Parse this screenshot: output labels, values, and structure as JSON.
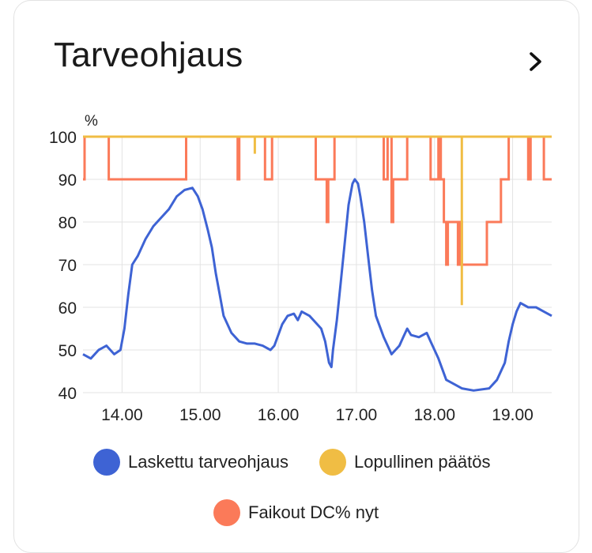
{
  "card": {
    "title": "Tarveohjaus",
    "more_icon": "chevron-right-icon"
  },
  "chart_data": {
    "type": "line",
    "ylabel": "%",
    "ylim": [
      40,
      100
    ],
    "xlim": [
      13.5,
      19.5
    ],
    "x_unit": "hours",
    "yticks": [
      "40",
      "50",
      "60",
      "70",
      "80",
      "90",
      "100"
    ],
    "xticks": [
      "14.00",
      "15.00",
      "16.00",
      "17.00",
      "18.00",
      "19.00"
    ],
    "grid": true,
    "legend_position": "bottom",
    "series": [
      {
        "name": "Laskettu tarveohjaus",
        "color": "#3e63d4",
        "step": false,
        "points": [
          [
            13.5,
            49
          ],
          [
            13.6,
            48
          ],
          [
            13.7,
            50
          ],
          [
            13.8,
            51
          ],
          [
            13.9,
            49
          ],
          [
            13.98,
            50
          ],
          [
            14.03,
            55
          ],
          [
            14.08,
            63
          ],
          [
            14.13,
            70
          ],
          [
            14.2,
            72
          ],
          [
            14.3,
            76
          ],
          [
            14.4,
            79
          ],
          [
            14.5,
            81
          ],
          [
            14.6,
            83
          ],
          [
            14.7,
            86
          ],
          [
            14.8,
            87.5
          ],
          [
            14.9,
            88
          ],
          [
            14.97,
            86
          ],
          [
            15.03,
            83
          ],
          [
            15.1,
            78
          ],
          [
            15.15,
            74
          ],
          [
            15.2,
            68
          ],
          [
            15.25,
            63
          ],
          [
            15.3,
            58
          ],
          [
            15.4,
            54
          ],
          [
            15.5,
            52
          ],
          [
            15.6,
            51.5
          ],
          [
            15.7,
            51.5
          ],
          [
            15.8,
            51
          ],
          [
            15.9,
            50
          ],
          [
            15.95,
            51
          ],
          [
            16.05,
            56
          ],
          [
            16.12,
            58
          ],
          [
            16.2,
            58.5
          ],
          [
            16.25,
            57
          ],
          [
            16.3,
            59
          ],
          [
            16.4,
            58
          ],
          [
            16.5,
            56
          ],
          [
            16.55,
            55
          ],
          [
            16.6,
            52
          ],
          [
            16.65,
            47
          ],
          [
            16.68,
            46
          ],
          [
            16.7,
            50
          ],
          [
            16.75,
            57
          ],
          [
            16.8,
            66
          ],
          [
            16.85,
            75
          ],
          [
            16.9,
            84
          ],
          [
            16.95,
            89
          ],
          [
            16.98,
            90
          ],
          [
            17.02,
            89
          ],
          [
            17.05,
            86
          ],
          [
            17.1,
            80
          ],
          [
            17.15,
            72
          ],
          [
            17.2,
            64
          ],
          [
            17.25,
            58
          ],
          [
            17.35,
            53
          ],
          [
            17.45,
            49
          ],
          [
            17.55,
            51
          ],
          [
            17.6,
            53
          ],
          [
            17.65,
            55
          ],
          [
            17.7,
            53.5
          ],
          [
            17.8,
            53
          ],
          [
            17.9,
            54
          ],
          [
            17.95,
            52
          ],
          [
            18.05,
            48
          ],
          [
            18.15,
            43
          ],
          [
            18.25,
            42
          ],
          [
            18.35,
            41
          ],
          [
            18.5,
            40.5
          ],
          [
            18.7,
            41
          ],
          [
            18.8,
            43
          ],
          [
            18.9,
            47
          ],
          [
            18.95,
            52
          ],
          [
            19.0,
            56
          ],
          [
            19.05,
            59
          ],
          [
            19.1,
            61
          ],
          [
            19.2,
            60
          ],
          [
            19.3,
            60
          ],
          [
            19.4,
            59
          ],
          [
            19.5,
            58
          ]
        ]
      },
      {
        "name": "Lopullinen päätös",
        "color": "#f0bd44",
        "step": true,
        "points": [
          [
            13.5,
            100
          ],
          [
            15.7,
            100
          ],
          [
            15.7,
            96
          ],
          [
            15.7,
            100
          ],
          [
            18.35,
            100
          ],
          [
            18.35,
            60.5
          ],
          [
            18.35,
            100
          ],
          [
            19.5,
            100
          ]
        ]
      },
      {
        "name": "Faikout DC% nyt",
        "color": "#fb7a59",
        "step": true,
        "points": [
          [
            13.5,
            90
          ],
          [
            13.52,
            90
          ],
          [
            13.52,
            100
          ],
          [
            13.83,
            100
          ],
          [
            13.83,
            90
          ],
          [
            14.82,
            90
          ],
          [
            14.82,
            100
          ],
          [
            15.48,
            100
          ],
          [
            15.48,
            90
          ],
          [
            15.5,
            90
          ],
          [
            15.5,
            100
          ],
          [
            15.83,
            100
          ],
          [
            15.83,
            90
          ],
          [
            15.92,
            90
          ],
          [
            15.92,
            100
          ],
          [
            16.48,
            100
          ],
          [
            16.48,
            90
          ],
          [
            16.62,
            90
          ],
          [
            16.62,
            80
          ],
          [
            16.64,
            80
          ],
          [
            16.64,
            90
          ],
          [
            16.72,
            90
          ],
          [
            16.72,
            100
          ],
          [
            17.35,
            100
          ],
          [
            17.35,
            90
          ],
          [
            17.4,
            90
          ],
          [
            17.4,
            100
          ],
          [
            17.45,
            100
          ],
          [
            17.45,
            80
          ],
          [
            17.47,
            80
          ],
          [
            17.47,
            90
          ],
          [
            17.65,
            90
          ],
          [
            17.65,
            100
          ],
          [
            17.95,
            100
          ],
          [
            17.95,
            90
          ],
          [
            18.05,
            90
          ],
          [
            18.05,
            100
          ],
          [
            18.08,
            100
          ],
          [
            18.08,
            90
          ],
          [
            18.12,
            90
          ],
          [
            18.12,
            80
          ],
          [
            18.15,
            80
          ],
          [
            18.15,
            70
          ],
          [
            18.17,
            70
          ],
          [
            18.17,
            80
          ],
          [
            18.3,
            80
          ],
          [
            18.3,
            70
          ],
          [
            18.33,
            70
          ],
          [
            18.33,
            80
          ],
          [
            18.35,
            80
          ],
          [
            18.35,
            70
          ],
          [
            18.67,
            70
          ],
          [
            18.67,
            80
          ],
          [
            18.85,
            80
          ],
          [
            18.85,
            90
          ],
          [
            18.95,
            90
          ],
          [
            18.95,
            100
          ],
          [
            19.2,
            100
          ],
          [
            19.2,
            90
          ],
          [
            19.23,
            90
          ],
          [
            19.23,
            100
          ],
          [
            19.4,
            100
          ],
          [
            19.4,
            90
          ],
          [
            19.5,
            90
          ]
        ]
      }
    ]
  }
}
